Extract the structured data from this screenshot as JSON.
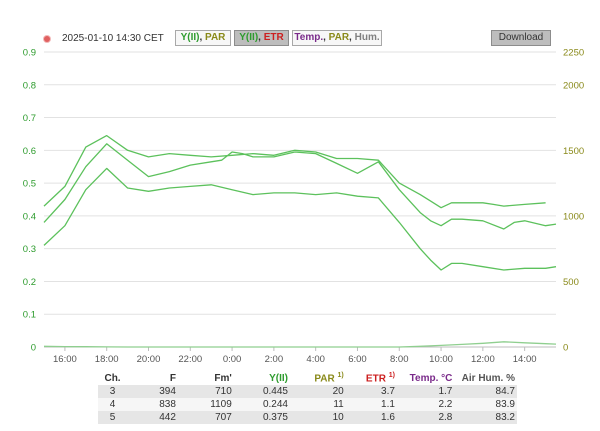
{
  "toolbar": {
    "timestamp": "2025-01-10 14:30 CET",
    "btn1": {
      "part1": "Y(II)",
      "sep": ", ",
      "part2": "PAR"
    },
    "btn2": {
      "part1": "Y(II)",
      "sep": ", ",
      "part2": "ETR"
    },
    "btn3": {
      "part1": "Temp.",
      "sep1": ", ",
      "part2": "PAR",
      "sep2": ", ",
      "part3": "Hum."
    },
    "download_label": "Download"
  },
  "colors": {
    "yii": "#2e9c2e",
    "par": "#8a8a1a",
    "etr": "#cc1f1f",
    "temp": "#7a2a8a",
    "hum": "#808080",
    "line": "#5cc15c",
    "grid": "#e2e2e2"
  },
  "chart_data": {
    "type": "line",
    "y_left": {
      "ticks": [
        "0",
        "0.1",
        "0.2",
        "0.3",
        "0.4",
        "0.5",
        "0.6",
        "0.7",
        "0.8",
        "0.9"
      ],
      "range": [
        0,
        0.9
      ]
    },
    "y_right": {
      "ticks": [
        "0",
        "500",
        "1000",
        "1500",
        "2000",
        "2250"
      ],
      "range": [
        0,
        2250
      ]
    },
    "x_ticks": [
      "16:00",
      "18:00",
      "20:00",
      "22:00",
      "0:00",
      "2:00",
      "4:00",
      "6:00",
      "8:00",
      "10:00",
      "12:00",
      "14:00"
    ],
    "x_hours_start": "15:00",
    "series": [
      {
        "axis": "left",
        "values": [
          [
            15.0,
            0.43
          ],
          [
            16.0,
            0.49
          ],
          [
            17.0,
            0.61
          ],
          [
            18.0,
            0.645
          ],
          [
            19.0,
            0.6
          ],
          [
            20.0,
            0.58
          ],
          [
            21.0,
            0.59
          ],
          [
            22.0,
            0.585
          ],
          [
            23.0,
            0.58
          ],
          [
            24.0,
            0.585
          ],
          [
            25.0,
            0.59
          ],
          [
            26.0,
            0.585
          ],
          [
            27.0,
            0.6
          ],
          [
            28.0,
            0.595
          ],
          [
            29.0,
            0.575
          ],
          [
            30.0,
            0.575
          ],
          [
            31.0,
            0.57
          ],
          [
            32.0,
            0.5
          ],
          [
            33.0,
            0.465
          ],
          [
            33.5,
            0.445
          ],
          [
            34.0,
            0.425
          ],
          [
            34.5,
            0.44
          ],
          [
            35.0,
            0.44
          ],
          [
            36.0,
            0.44
          ],
          [
            36.5,
            0.435
          ],
          [
            37.0,
            0.43
          ],
          [
            38.0,
            0.435
          ],
          [
            39.0,
            0.44
          ]
        ]
      },
      {
        "axis": "left",
        "values": [
          [
            15.0,
            0.38
          ],
          [
            16.0,
            0.45
          ],
          [
            17.0,
            0.55
          ],
          [
            18.0,
            0.62
          ],
          [
            19.0,
            0.57
          ],
          [
            20.0,
            0.52
          ],
          [
            21.0,
            0.535
          ],
          [
            22.0,
            0.555
          ],
          [
            23.0,
            0.565
          ],
          [
            23.5,
            0.57
          ],
          [
            24.0,
            0.595
          ],
          [
            24.5,
            0.59
          ],
          [
            25.0,
            0.58
          ],
          [
            26.0,
            0.58
          ],
          [
            27.0,
            0.595
          ],
          [
            28.0,
            0.59
          ],
          [
            29.0,
            0.56
          ],
          [
            30.0,
            0.53
          ],
          [
            31.0,
            0.565
          ],
          [
            32.0,
            0.48
          ],
          [
            33.0,
            0.41
          ],
          [
            33.5,
            0.385
          ],
          [
            34.0,
            0.37
          ],
          [
            34.5,
            0.39
          ],
          [
            35.0,
            0.39
          ],
          [
            36.0,
            0.385
          ],
          [
            37.0,
            0.36
          ],
          [
            37.5,
            0.38
          ],
          [
            38.0,
            0.385
          ],
          [
            39.0,
            0.37
          ],
          [
            39.5,
            0.375
          ]
        ]
      },
      {
        "axis": "left",
        "values": [
          [
            15.0,
            0.31
          ],
          [
            16.0,
            0.37
          ],
          [
            17.0,
            0.48
          ],
          [
            18.0,
            0.545
          ],
          [
            19.0,
            0.485
          ],
          [
            20.0,
            0.475
          ],
          [
            21.0,
            0.485
          ],
          [
            22.0,
            0.49
          ],
          [
            23.0,
            0.495
          ],
          [
            24.0,
            0.48
          ],
          [
            25.0,
            0.465
          ],
          [
            26.0,
            0.47
          ],
          [
            27.0,
            0.47
          ],
          [
            28.0,
            0.465
          ],
          [
            29.0,
            0.47
          ],
          [
            30.0,
            0.46
          ],
          [
            31.0,
            0.455
          ],
          [
            32.0,
            0.38
          ],
          [
            33.0,
            0.3
          ],
          [
            33.5,
            0.265
          ],
          [
            34.0,
            0.235
          ],
          [
            34.5,
            0.255
          ],
          [
            35.0,
            0.255
          ],
          [
            36.0,
            0.245
          ],
          [
            37.0,
            0.235
          ],
          [
            38.0,
            0.24
          ],
          [
            39.0,
            0.24
          ],
          [
            39.5,
            0.245
          ]
        ]
      },
      {
        "axis": "right",
        "values": [
          [
            15.0,
            5
          ],
          [
            16.0,
            3
          ],
          [
            17.0,
            2
          ],
          [
            18.0,
            1
          ],
          [
            19.0,
            0
          ],
          [
            32.0,
            0
          ],
          [
            33.0,
            5
          ],
          [
            34.0,
            12
          ],
          [
            35.0,
            20
          ],
          [
            36.0,
            28
          ],
          [
            37.0,
            40
          ],
          [
            38.0,
            32
          ],
          [
            39.0,
            25
          ],
          [
            39.5,
            22
          ]
        ]
      }
    ]
  },
  "table": {
    "headers": {
      "ch": "Ch.",
      "f": "F",
      "fm": "Fm'",
      "yii": "Y(II)",
      "par": "PAR",
      "par_sup": "1)",
      "etr": "ETR",
      "etr_sup": "1)",
      "temp": "Temp. °C",
      "hum": "Air Hum. %"
    },
    "rows": [
      {
        "ch": "3",
        "f": "394",
        "fm": "710",
        "yii": "0.445",
        "par": "20",
        "etr": "3.7",
        "temp": "1.7",
        "hum": "84.7"
      },
      {
        "ch": "4",
        "f": "838",
        "fm": "1109",
        "yii": "0.244",
        "par": "11",
        "etr": "1.1",
        "temp": "2.2",
        "hum": "83.9"
      },
      {
        "ch": "5",
        "f": "442",
        "fm": "707",
        "yii": "0.375",
        "par": "10",
        "etr": "1.6",
        "temp": "2.8",
        "hum": "83.2"
      }
    ]
  }
}
